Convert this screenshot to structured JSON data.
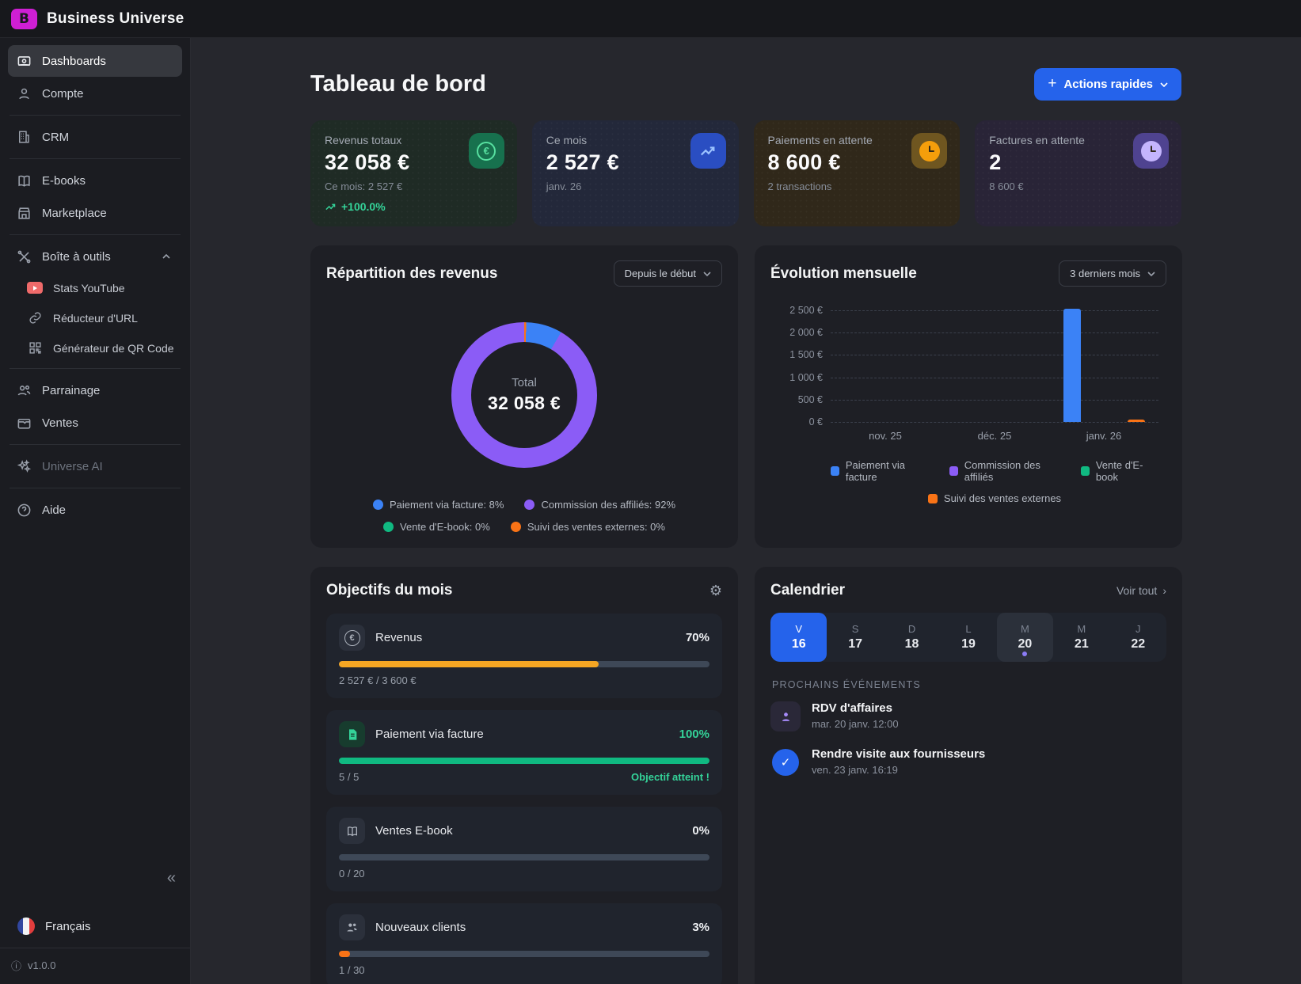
{
  "app": {
    "title": "Business Universe",
    "version": "v1.0.0",
    "language": "Français"
  },
  "icons": {
    "collapse": "«",
    "gear": "⚙",
    "check": "✓",
    "euro": "€",
    "plus": "+",
    "chevron_right": "›",
    "info": "ⓘ"
  },
  "sidebar": {
    "items": [
      {
        "label": "Dashboards"
      },
      {
        "label": "Compte"
      },
      {
        "label": "CRM"
      },
      {
        "label": "E-books"
      },
      {
        "label": "Marketplace"
      },
      {
        "label": "Boîte à outils"
      },
      {
        "label": "Stats YouTube"
      },
      {
        "label": "Réducteur d'URL"
      },
      {
        "label": "Générateur de QR Code"
      },
      {
        "label": "Parrainage"
      },
      {
        "label": "Ventes"
      },
      {
        "label": "Universe AI"
      },
      {
        "label": "Aide"
      }
    ]
  },
  "header": {
    "title": "Tableau de bord",
    "quick_actions_label": "Actions rapides"
  },
  "stats": [
    {
      "label": "Revenus totaux",
      "value": "32 058 €",
      "subtitle": "Ce mois: 2 527 €",
      "trend": "+100.0%"
    },
    {
      "label": "Ce mois",
      "value": "2 527 €",
      "subtitle": "janv. 26"
    },
    {
      "label": "Paiements en attente",
      "value": "8 600 €",
      "subtitle": "2 transactions"
    },
    {
      "label": "Factures en attente",
      "value": "2",
      "subtitle": "8 600 €"
    }
  ],
  "revenue_split": {
    "title": "Répartition des revenus",
    "filter": "Depuis le début",
    "center_label": "Total",
    "center_value": "32 058 €",
    "legend": [
      {
        "label": "Paiement via facture: 8%",
        "color": "#3b82f6"
      },
      {
        "label": "Commission des affiliés: 92%",
        "color": "#8b5cf6"
      },
      {
        "label": "Vente d'E-book: 0%",
        "color": "#10b981"
      },
      {
        "label": "Suivi des ventes externes: 0%",
        "color": "#f97316"
      }
    ]
  },
  "monthly": {
    "title": "Évolution mensuelle",
    "filter": "3 derniers mois",
    "legend": [
      {
        "label": "Paiement via facture",
        "color": "#3b82f6"
      },
      {
        "label": "Commission des affiliés",
        "color": "#8b5cf6"
      },
      {
        "label": "Vente d'E-book",
        "color": "#10b981"
      },
      {
        "label": "Suivi des ventes externes",
        "color": "#f97316"
      }
    ]
  },
  "chart_data": [
    {
      "type": "pie",
      "title": "Répartition des revenus",
      "total_label": "Total",
      "total_value": "32 058 €",
      "segments": [
        {
          "label": "Suivi des ventes externes",
          "pct": 0,
          "color": "#f97316"
        },
        {
          "label": "Paiement via facture",
          "pct": 8,
          "color": "#3b82f6"
        },
        {
          "label": "Commission des affiliés",
          "pct": 92,
          "color": "#8b5cf6"
        },
        {
          "label": "Vente d'E-book",
          "pct": 0,
          "color": "#10b981"
        }
      ]
    },
    {
      "type": "bar",
      "title": "Évolution mensuelle",
      "categories": [
        "nov. 25",
        "déc. 25",
        "janv. 26"
      ],
      "series": [
        {
          "name": "Paiement via facture",
          "color": "#3b82f6",
          "values": [
            0,
            0,
            2527
          ]
        },
        {
          "name": "Commission des affiliés",
          "color": "#8b5cf6",
          "values": [
            0,
            0,
            0
          ]
        },
        {
          "name": "Vente d'E-book",
          "color": "#10b981",
          "values": [
            0,
            0,
            0
          ]
        },
        {
          "name": "Suivi des ventes externes",
          "color": "#f97316",
          "values": [
            0,
            0,
            60
          ]
        }
      ],
      "yticks": [
        "2 500 €",
        "2 000 €",
        "1 500 €",
        "1 000 €",
        "500 €",
        "0 €"
      ],
      "yref": 2500,
      "ylim": [
        0,
        2500
      ],
      "grid": true,
      "legend_position": "bottom"
    }
  ],
  "goals": {
    "title": "Objectifs du mois",
    "items": [
      {
        "label": "Revenus",
        "pct": "70%",
        "pct_value": 70,
        "progress": "2 527 € / 3 600 €",
        "color": "#f5a623",
        "status": ""
      },
      {
        "label": "Paiement via facture",
        "pct": "100%",
        "pct_value": 100,
        "progress": "5 / 5",
        "color": "#10b981",
        "status": "Objectif atteint !"
      },
      {
        "label": "Ventes E-book",
        "pct": "0%",
        "pct_value": 0,
        "progress": "0 / 20",
        "color": "#10b981",
        "status": ""
      },
      {
        "label": "Nouveaux clients",
        "pct": "3%",
        "pct_value": 3,
        "progress": "1 / 30",
        "color": "#f97316",
        "status": ""
      }
    ]
  },
  "calendar": {
    "title": "Calendrier",
    "view_all": "Voir tout",
    "days": [
      {
        "letter": "V",
        "num": "16"
      },
      {
        "letter": "S",
        "num": "17"
      },
      {
        "letter": "D",
        "num": "18"
      },
      {
        "letter": "L",
        "num": "19"
      },
      {
        "letter": "M",
        "num": "20"
      },
      {
        "letter": "M",
        "num": "21"
      },
      {
        "letter": "J",
        "num": "22"
      }
    ],
    "events_header": "PROCHAINS ÉVÉNEMENTS",
    "events": [
      {
        "title": "RDV d'affaires",
        "datetime": "mar. 20 janv. 12:00"
      },
      {
        "title": "Rendre visite aux fournisseurs",
        "datetime": "ven. 23 janv. 16:19"
      }
    ]
  }
}
